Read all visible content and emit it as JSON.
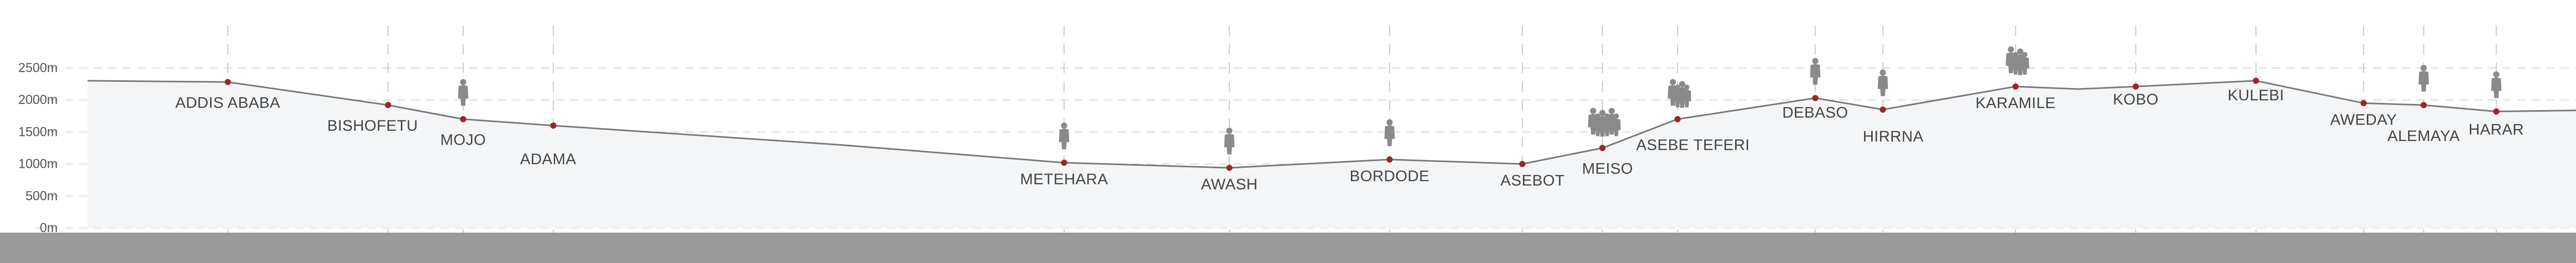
{
  "chart_data": {
    "type": "area",
    "title": "",
    "xlabel": "",
    "ylabel": "",
    "ylim": [
      0,
      2500
    ],
    "y_ticks": [
      "2500m",
      "2000m",
      "1500m",
      "1000m",
      "500m",
      "0m"
    ],
    "y_tick_values": [
      2500,
      2000,
      1500,
      1000,
      500,
      0
    ],
    "grid": true,
    "colors": {
      "profile": "#777777",
      "station": "#a3222a",
      "ground": "#9a9a9a",
      "icon": "#8a8a8a"
    },
    "profile": [
      {
        "x": 0.0,
        "y": 2300
      },
      {
        "x": 0.056,
        "y": 2280
      },
      {
        "x": 0.12,
        "y": 1920
      },
      {
        "x": 0.15,
        "y": 1700
      },
      {
        "x": 0.186,
        "y": 1600
      },
      {
        "x": 0.3,
        "y": 1300
      },
      {
        "x": 0.39,
        "y": 1020
      },
      {
        "x": 0.456,
        "y": 940
      },
      {
        "x": 0.52,
        "y": 1070
      },
      {
        "x": 0.573,
        "y": 1000
      },
      {
        "x": 0.605,
        "y": 1250
      },
      {
        "x": 0.635,
        "y": 1700
      },
      {
        "x": 0.69,
        "y": 2030
      },
      {
        "x": 0.717,
        "y": 1850
      },
      {
        "x": 0.77,
        "y": 2210
      },
      {
        "x": 0.795,
        "y": 2170
      },
      {
        "x": 0.818,
        "y": 2210
      },
      {
        "x": 0.866,
        "y": 2300
      },
      {
        "x": 0.909,
        "y": 1950
      },
      {
        "x": 0.933,
        "y": 1920
      },
      {
        "x": 0.962,
        "y": 1820
      },
      {
        "x": 1.0,
        "y": 1840
      }
    ],
    "stations": [
      {
        "name": "ADDIS ABABA",
        "x": 0.056,
        "elevation": 2280,
        "label_dx": 0,
        "label_dy": 50,
        "people": 0
      },
      {
        "name": "BISHOFETU",
        "x": 0.12,
        "elevation": 1920,
        "label_dx": -30,
        "label_dy": 50,
        "people": 0
      },
      {
        "name": "MOJO",
        "x": 0.15,
        "elevation": 1700,
        "label_dx": 0,
        "label_dy": 50,
        "people": 1
      },
      {
        "name": "ADAMA",
        "x": 0.186,
        "elevation": 1600,
        "label_dx": -10,
        "label_dy": 75,
        "people": 0
      },
      {
        "name": "METEHARA",
        "x": 0.39,
        "elevation": 1020,
        "label_dx": 0,
        "label_dy": 42,
        "people": 1
      },
      {
        "name": "AWASH",
        "x": 0.456,
        "elevation": 940,
        "label_dx": 0,
        "label_dy": 42,
        "people": 1
      },
      {
        "name": "BORDODE",
        "x": 0.52,
        "elevation": 1070,
        "label_dx": 0,
        "label_dy": 42,
        "people": 1
      },
      {
        "name": "ASEBOT",
        "x": 0.573,
        "elevation": 1000,
        "label_dx": 20,
        "label_dy": 42,
        "people": 0
      },
      {
        "name": "MEISO",
        "x": 0.605,
        "elevation": 1250,
        "label_dx": 10,
        "label_dy": 50,
        "people": 3
      },
      {
        "name": "ASEBE TEFERI",
        "x": 0.635,
        "elevation": 1700,
        "label_dx": 30,
        "label_dy": 60,
        "people": 2
      },
      {
        "name": "DEBASO",
        "x": 0.69,
        "elevation": 2030,
        "label_dx": 0,
        "label_dy": 38,
        "people": 1
      },
      {
        "name": "HIRRNA",
        "x": 0.717,
        "elevation": 1850,
        "label_dx": 20,
        "label_dy": 62,
        "people": 1
      },
      {
        "name": "KARAMILE",
        "x": 0.77,
        "elevation": 2210,
        "label_dx": 0,
        "label_dy": 42,
        "people": 2
      },
      {
        "name": "KOBO",
        "x": 0.818,
        "elevation": 2210,
        "label_dx": 0,
        "label_dy": 35,
        "people": 0
      },
      {
        "name": "KULEBI",
        "x": 0.866,
        "elevation": 2300,
        "label_dx": 0,
        "label_dy": 38,
        "people": 0
      },
      {
        "name": "AWEDAY",
        "x": 0.909,
        "elevation": 1950,
        "label_dx": 0,
        "label_dy": 42,
        "people": 0
      },
      {
        "name": "ALEMAYA",
        "x": 0.933,
        "elevation": 1920,
        "label_dx": 0,
        "label_dy": 70,
        "people": 1
      },
      {
        "name": "HARAR",
        "x": 0.962,
        "elevation": 1820,
        "label_dx": 0,
        "label_dy": 45,
        "people": 1
      }
    ]
  }
}
